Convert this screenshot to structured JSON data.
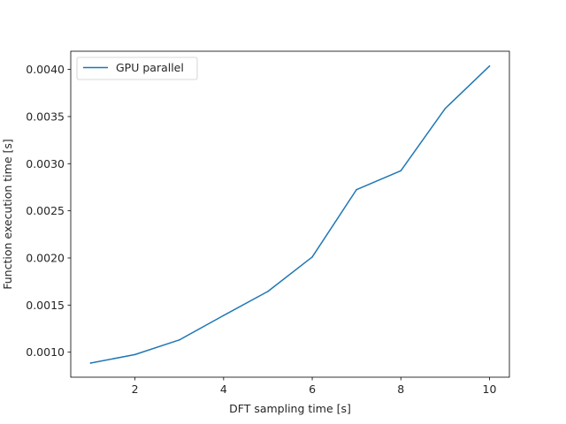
{
  "chart_data": {
    "type": "line",
    "title": "",
    "xlabel": "DFT sampling time [s]",
    "ylabel": "Function execution time [s]",
    "xlim": [
      0.55,
      10.45
    ],
    "ylim": [
      0.000735,
      0.004193
    ],
    "xticks": [
      2,
      4,
      6,
      8,
      10
    ],
    "xtick_labels": [
      "2",
      "4",
      "6",
      "8",
      "10"
    ],
    "yticks": [
      0.001,
      0.0015,
      0.002,
      0.0025,
      0.003,
      0.0035,
      0.004
    ],
    "ytick_labels": [
      "0.0010",
      "0.0015",
      "0.0020",
      "0.0025",
      "0.0030",
      "0.0035",
      "0.0040"
    ],
    "grid": false,
    "legend_position": "top-left",
    "series": [
      {
        "name": "GPU parallel",
        "color": "#1f77b4",
        "x": [
          1,
          2,
          3,
          4,
          5,
          6,
          7,
          8,
          9,
          10
        ],
        "y": [
          0.000885,
          0.000975,
          0.00113,
          0.00139,
          0.001645,
          0.00201,
          0.002725,
          0.002925,
          0.003585,
          0.004035
        ]
      }
    ]
  }
}
